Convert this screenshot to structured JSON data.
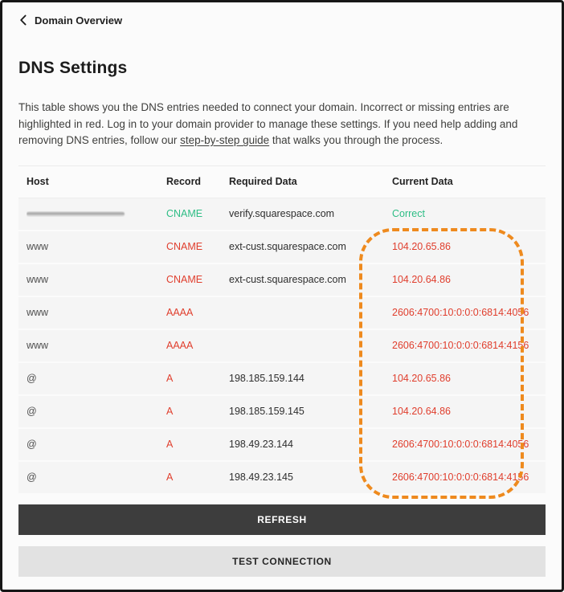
{
  "back": {
    "label": "Domain Overview"
  },
  "header": {
    "title": "DNS Settings"
  },
  "description": {
    "part1": "This table shows you the DNS entries needed to connect your domain. Incorrect or missing entries are highlighted in red. Log in to your domain provider to manage these settings. If you need help adding and removing DNS entries, follow our ",
    "link": "step-by-step guide",
    "part2": " that walks you through the process."
  },
  "table": {
    "columns": [
      "Host",
      "Record",
      "Required Data",
      "Current Data"
    ],
    "rows": [
      {
        "host": "",
        "host_redacted": true,
        "record": "CNAME",
        "record_status": "ok",
        "required": "verify.squarespace.com",
        "current": "Correct",
        "current_status": "ok"
      },
      {
        "host": "www",
        "host_redacted": false,
        "record": "CNAME",
        "record_status": "error",
        "required": "ext-cust.squarespace.com",
        "current": "104.20.65.86",
        "current_status": "error"
      },
      {
        "host": "www",
        "host_redacted": false,
        "record": "CNAME",
        "record_status": "error",
        "required": "ext-cust.squarespace.com",
        "current": "104.20.64.86",
        "current_status": "error"
      },
      {
        "host": "www",
        "host_redacted": false,
        "record": "AAAA",
        "record_status": "error",
        "required": "",
        "current": "2606:4700:10:0:0:0:6814:4056",
        "current_status": "error"
      },
      {
        "host": "www",
        "host_redacted": false,
        "record": "AAAA",
        "record_status": "error",
        "required": "",
        "current": "2606:4700:10:0:0:0:6814:4156",
        "current_status": "error"
      },
      {
        "host": "@",
        "host_redacted": false,
        "record": "A",
        "record_status": "error",
        "required": "198.185.159.144",
        "current": "104.20.65.86",
        "current_status": "error"
      },
      {
        "host": "@",
        "host_redacted": false,
        "record": "A",
        "record_status": "error",
        "required": "198.185.159.145",
        "current": "104.20.64.86",
        "current_status": "error"
      },
      {
        "host": "@",
        "host_redacted": false,
        "record": "A",
        "record_status": "error",
        "required": "198.49.23.144",
        "current": "2606:4700:10:0:0:0:6814:4056",
        "current_status": "error"
      },
      {
        "host": "@",
        "host_redacted": false,
        "record": "A",
        "record_status": "error",
        "required": "198.49.23.145",
        "current": "2606:4700:10:0:0:0:6814:4156",
        "current_status": "error"
      }
    ]
  },
  "buttons": {
    "refresh": "REFRESH",
    "test_connection": "TEST CONNECTION"
  },
  "colors": {
    "ok": "#2ebd85",
    "error": "#e03e2d",
    "highlight": "#ee8a1e",
    "button_dark": "#3d3d3d",
    "button_light": "#e2e2e2"
  }
}
